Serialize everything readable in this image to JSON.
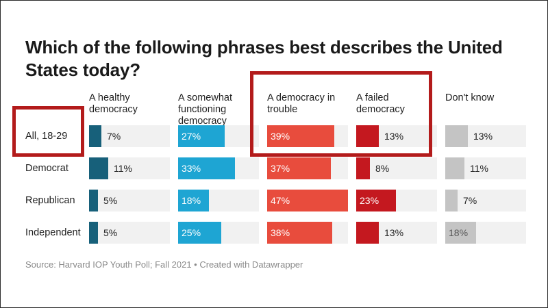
{
  "chart_data": {
    "type": "bar",
    "title": "Which of the following phrases best describes the United States today?",
    "categories": [
      "All, 18-29",
      "Democrat",
      "Republican",
      "Independent"
    ],
    "series": [
      {
        "name": "A healthy democracy",
        "values": [
          7,
          11,
          5,
          5
        ],
        "labels": [
          "7%",
          "11%",
          "5%",
          "5%"
        ],
        "color": "#17607a"
      },
      {
        "name": "A somewhat functioning democracy",
        "values": [
          27,
          33,
          18,
          25
        ],
        "labels": [
          "27%",
          "33%",
          "18%",
          "25%"
        ],
        "color": "#1ea5d3"
      },
      {
        "name": "A democracy in trouble",
        "values": [
          39,
          37,
          47,
          38
        ],
        "labels": [
          "39%",
          "37%",
          "47%",
          "38%"
        ],
        "color": "#e84c3d"
      },
      {
        "name": "A failed democracy",
        "values": [
          13,
          8,
          23,
          13
        ],
        "labels": [
          "13%",
          "8%",
          "23%",
          "13%"
        ],
        "color": "#c4181f"
      },
      {
        "name": "Don't know",
        "values": [
          13,
          11,
          7,
          18
        ],
        "labels": [
          "13%",
          "11%",
          "7%",
          "18%"
        ],
        "color": "#c4c4c4"
      }
    ],
    "column_headers": [
      "A healthy\ndemocracy",
      "A somewhat\nfunctioning\ndemocracy",
      "A democracy in\ntrouble",
      "A failed\ndemocracy",
      "Don't know"
    ],
    "xlim": [
      0,
      47
    ],
    "source": "Source: Harvard IOP Youth Poll; Fall 2021 • Created with Datawrapper",
    "track_color": "#f1f1f1",
    "highlight_color": "#b31b1b"
  }
}
